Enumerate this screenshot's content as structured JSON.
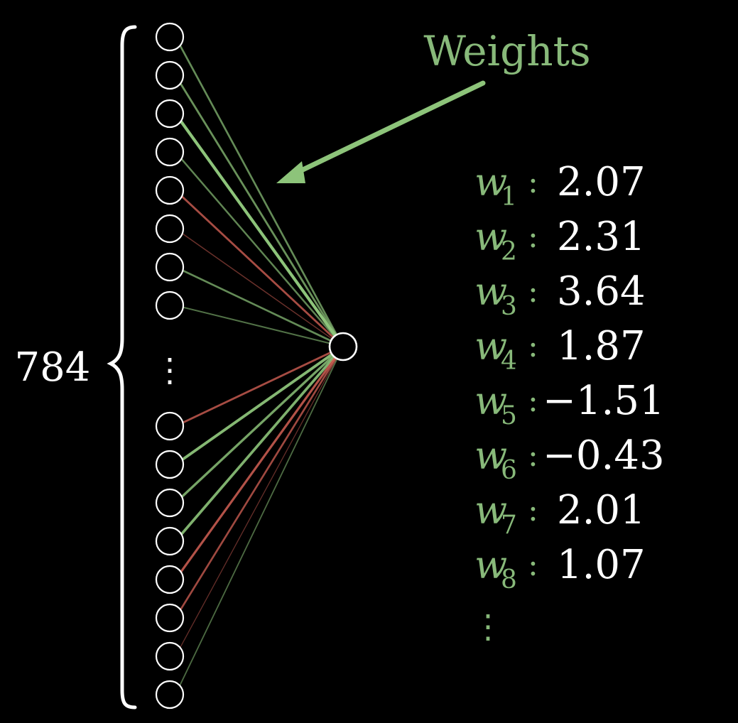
{
  "colors": {
    "background": "#000000",
    "positive": "#8dc47a",
    "negative": "#e0675a",
    "node": "#ffffff",
    "label": "#ffffff",
    "weight_label": "#88b97a"
  },
  "count_label": "784",
  "weights_label": "Weights",
  "weights": [
    {
      "symbol": "w",
      "index": "1",
      "separator": ":",
      "value": "2.07",
      "strength": 0.55
    },
    {
      "symbol": "w",
      "index": "2",
      "separator": ":",
      "value": "2.31",
      "strength": 0.6
    },
    {
      "symbol": "w",
      "index": "3",
      "separator": ":",
      "value": "3.64",
      "strength": 1.0
    },
    {
      "symbol": "w",
      "index": "4",
      "separator": ":",
      "value": "1.87",
      "strength": 0.5
    },
    {
      "symbol": "w",
      "index": "5",
      "separator": ":",
      "value": "−1.51",
      "strength": 0.6
    },
    {
      "symbol": "w",
      "index": "6",
      "separator": ":",
      "value": "−0.43",
      "strength": 0.2
    },
    {
      "symbol": "w",
      "index": "7",
      "separator": ":",
      "value": "2.01",
      "strength": 0.55
    },
    {
      "symbol": "w",
      "index": "8",
      "separator": ":",
      "value": "1.07",
      "strength": 0.35
    }
  ],
  "lower_connections": [
    {
      "sign": "negative",
      "strength": 0.6
    },
    {
      "sign": "positive",
      "strength": 0.9
    },
    {
      "sign": "positive",
      "strength": 0.75
    },
    {
      "sign": "positive",
      "strength": 0.85
    },
    {
      "sign": "negative",
      "strength": 0.7
    },
    {
      "sign": "negative",
      "strength": 0.55
    },
    {
      "sign": "negative",
      "strength": 0.15
    },
    {
      "sign": "positive",
      "strength": 0.3
    }
  ],
  "weights_list_ellipsis": "⋮",
  "input_ellipsis": "⋮"
}
